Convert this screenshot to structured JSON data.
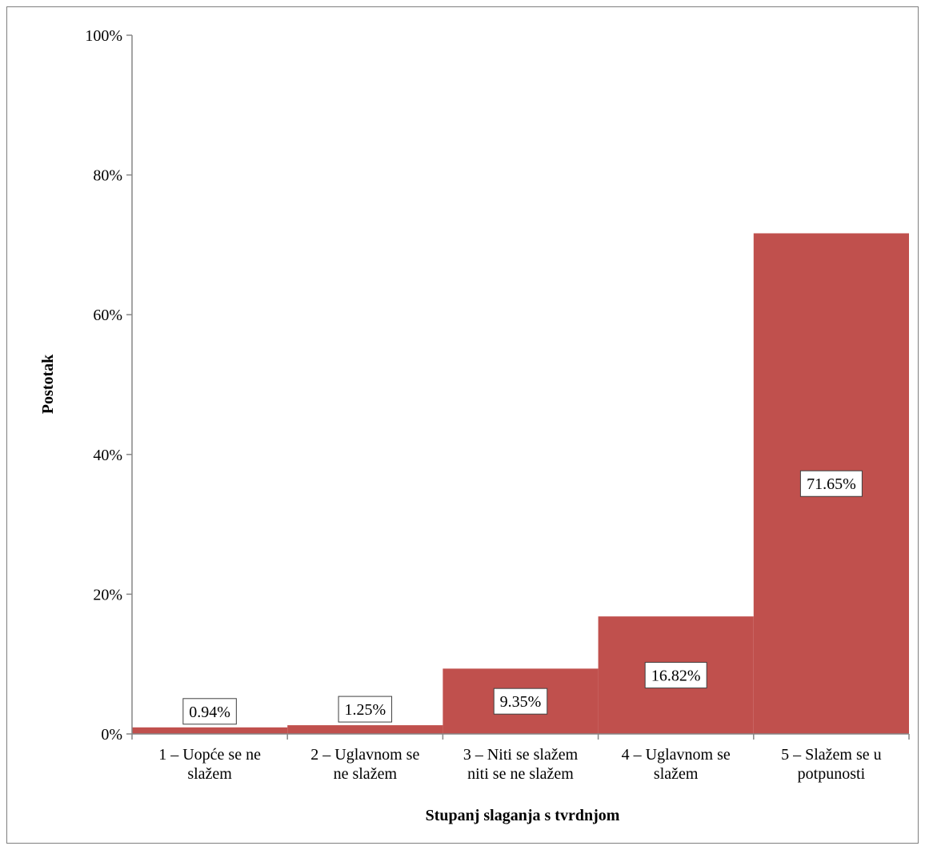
{
  "chart_data": {
    "type": "bar",
    "categories": [
      [
        "1 – Uopće se ne",
        "slažem"
      ],
      [
        "2 – Uglavnom se",
        "ne slažem"
      ],
      [
        "3 – Niti se slažem",
        "niti se ne slažem"
      ],
      [
        "4 – Uglavnom se",
        "slažem"
      ],
      [
        "5 – Slažem se u",
        "potpunosti"
      ]
    ],
    "values": [
      0.94,
      1.25,
      9.35,
      16.82,
      71.65
    ],
    "data_labels": [
      "0.94%",
      "1.25%",
      "9.35%",
      "16.82%",
      "71.65%"
    ],
    "xlabel": "Stupanj slaganja s tvrdnjom",
    "ylabel": "Postotak",
    "ylim": [
      0,
      100
    ],
    "yticks": [
      0,
      20,
      40,
      60,
      80,
      100
    ],
    "ytick_labels": [
      "0%",
      "20%",
      "40%",
      "60%",
      "80%",
      "100%"
    ],
    "bar_color": "#c0504d",
    "grid": false,
    "legend": "none"
  }
}
